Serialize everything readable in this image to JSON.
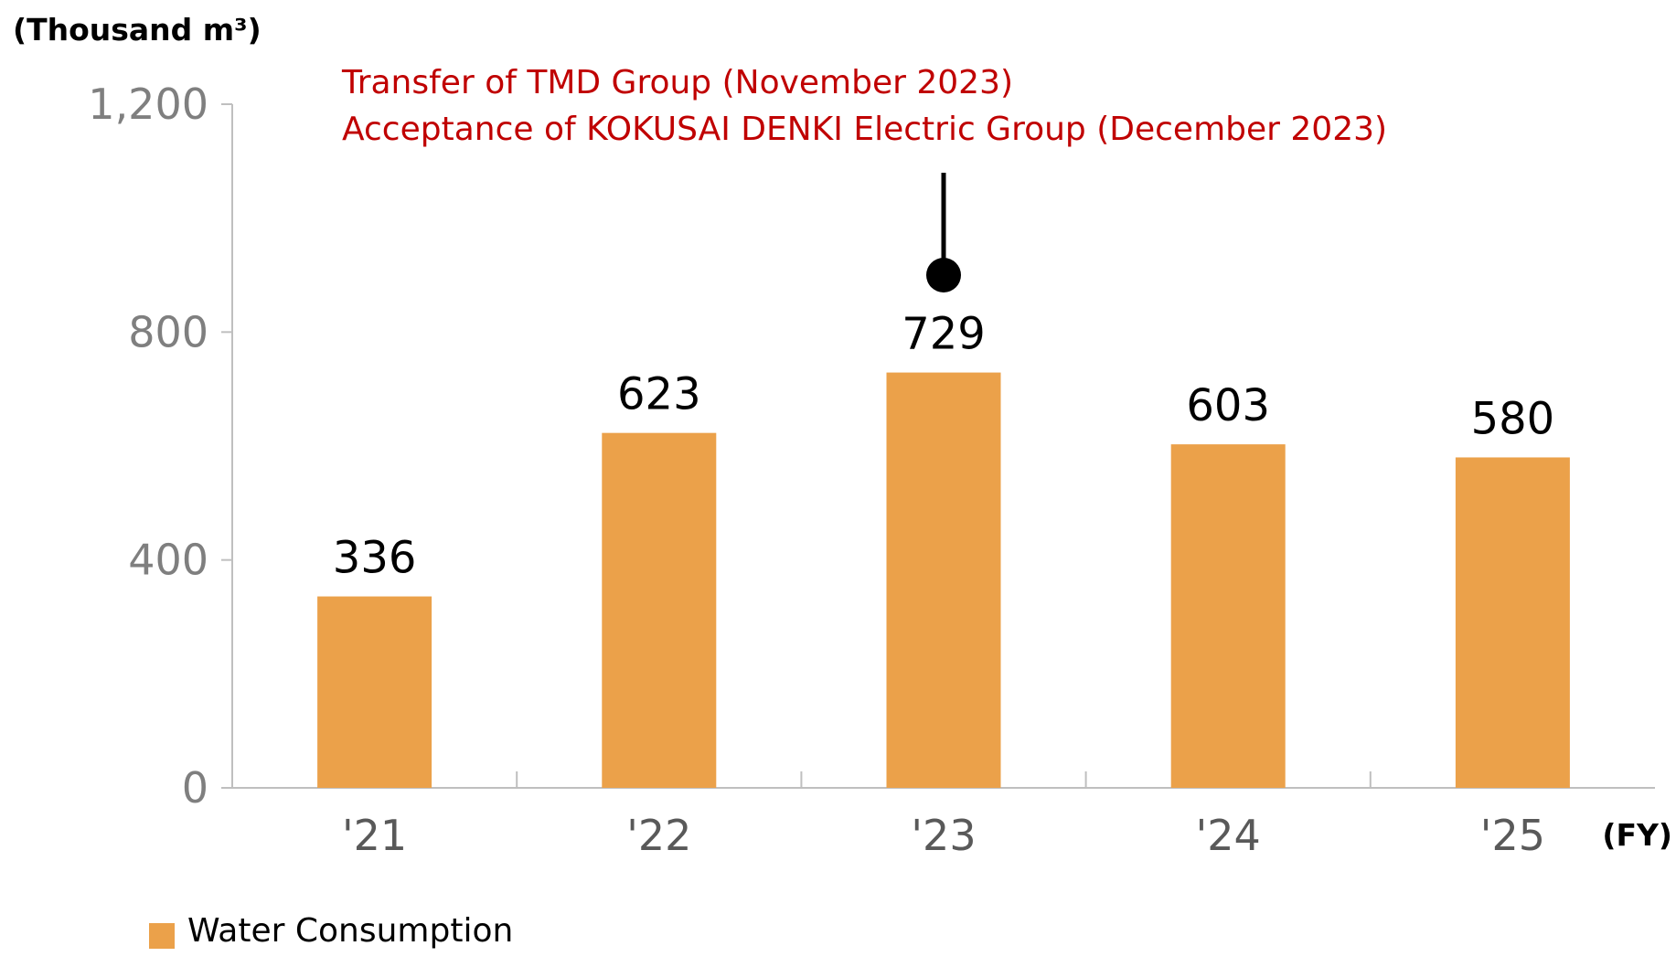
{
  "chart_data": {
    "type": "bar",
    "ylabel": "(Thousand m³)",
    "xlabel": "(FY)",
    "categories": [
      "'21",
      "'22",
      "'23",
      "'24",
      "'25"
    ],
    "series": [
      {
        "name": "Water Consumption",
        "values": [
          336,
          623,
          729,
          603,
          580
        ],
        "color": "#EBA14A"
      }
    ],
    "value_labels": [
      "336",
      "623",
      "729",
      "603",
      "580"
    ],
    "ylim": [
      0,
      1200
    ],
    "yticks": [
      0,
      400,
      800,
      1200
    ],
    "ytick_labels": [
      "0",
      "400",
      "800",
      "1,200"
    ],
    "grid": false,
    "legend_position": "bottom-left",
    "annotation": {
      "category": "'23",
      "lines": [
        "Transfer of TMD Group (November 2023)",
        "Acceptance of KOKUSAI DENKI Electric Group (December 2023)"
      ],
      "color": "#C00000"
    }
  }
}
